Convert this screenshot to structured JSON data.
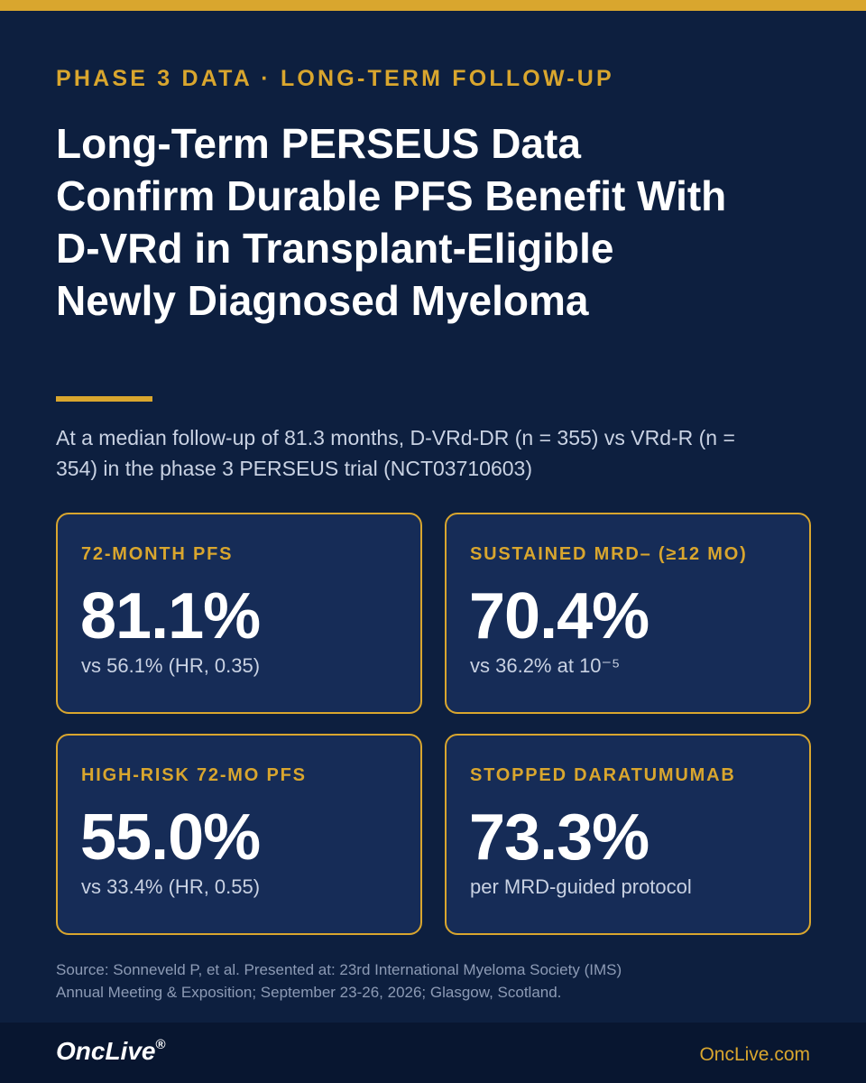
{
  "header": {
    "eyebrow": "PHASE 3 DATA · LONG-TERM FOLLOW-UP",
    "title": "Long-Term PERSEUS Data Confirm Durable PFS Benefit With D-VRd in Transplant-Eligible Newly Diagnosed Myeloma",
    "subtitle": "At a median follow-up of 81.3 months, D-VRd-DR (n = 355) vs VRd-R (n = 354) in the phase 3 PERSEUS trial (NCT03710603)"
  },
  "stats": [
    {
      "label": "72-MONTH PFS",
      "value": "81.1%",
      "note": "vs 56.1% (HR, 0.35)"
    },
    {
      "label": "SUSTAINED MRD– (≥12 MO)",
      "value": "70.4%",
      "note": "vs 36.2% at 10⁻⁵"
    },
    {
      "label": "HIGH-RISK 72-MO PFS",
      "value": "55.0%",
      "note": "vs 33.4% (HR, 0.55)"
    },
    {
      "label": "STOPPED DARATUMUMAB",
      "value": "73.3%",
      "note": "per MRD-guided protocol"
    }
  ],
  "source": {
    "line1": "Source: Sonneveld P, et al. Presented at: 23rd International Myeloma Society (IMS)",
    "line2": "Annual Meeting & Exposition; September 23-26, 2026; Glasgow, Scotland."
  },
  "footer": {
    "logo": "OncLive",
    "logo_mark": "®",
    "site": "OncLive.com"
  },
  "colors": {
    "background": "#0d1f3f",
    "accent": "#d9a62e",
    "card": "#162c57"
  }
}
